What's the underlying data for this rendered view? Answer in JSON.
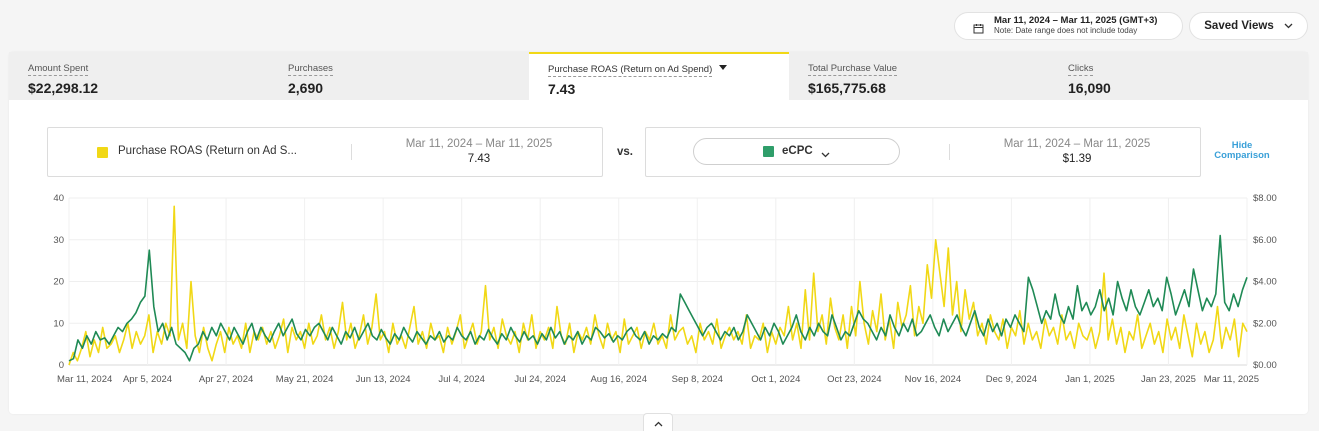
{
  "header": {
    "date_range": "Mar 11, 2024 – Mar 11, 2025 (GMT+3)",
    "date_note": "Note: Date range does not include today",
    "saved_views_label": "Saved Views",
    "icons": {
      "calendar": "calendar-icon",
      "chevron": "chevron-down-icon"
    }
  },
  "metrics": [
    {
      "label": "Amount Spent",
      "value": "$22,298.12"
    },
    {
      "label": "Purchases",
      "value": "2,690"
    },
    {
      "label": "Purchase ROAS (Return on Ad Spend)",
      "value": "7.43",
      "active": true
    },
    {
      "label": "Total Purchase Value",
      "value": "$165,775.68"
    },
    {
      "label": "Clicks",
      "value": "16,090"
    }
  ],
  "comparison": {
    "primary": {
      "name": "Purchase ROAS (Return on Ad S...",
      "range": "Mar 11, 2024 – Mar 11, 2025",
      "value": "7.43",
      "color": "#f1d816"
    },
    "vs_label": "vs.",
    "secondary": {
      "name": "eCPC",
      "range": "Mar 11, 2024 – Mar 11, 2025",
      "value": "$1.39",
      "color": "#2f9e6a"
    },
    "hide_label_line1": "Hide",
    "hide_label_line2": "Comparison"
  },
  "colors": {
    "roas": "#f1d816",
    "ecpc": "#1f8a55",
    "accent": "#3aa0d8"
  },
  "chart_data": {
    "type": "line",
    "x_ticks": [
      "Mar 11, 2024",
      "Apr 5, 2024",
      "Apr 27, 2024",
      "May 21, 2024",
      "Jun 13, 2024",
      "Jul 4, 2024",
      "Jul 24, 2024",
      "Aug 16, 2024",
      "Sep 8, 2024",
      "Oct 1, 2024",
      "Oct 23, 2024",
      "Nov 16, 2024",
      "Dec 9, 2024",
      "Jan 1, 2025",
      "Jan 23, 2025",
      "Mar 11, 2025"
    ],
    "y_left_ticks": [
      "40",
      "30",
      "20",
      "10",
      "0"
    ],
    "y_right_ticks": [
      "$8.00",
      "$6.00",
      "$4.00",
      "$2.00",
      "$0.00"
    ],
    "ylim_left": [
      0,
      40
    ],
    "ylim_right": [
      0,
      8
    ],
    "grid": true,
    "series": [
      {
        "name": "Purchase ROAS (Return on Ad Spend)",
        "axis": "left",
        "values": [
          0,
          3,
          1,
          4,
          8,
          2,
          6,
          3,
          9,
          4,
          5,
          7,
          3,
          6,
          10,
          4,
          8,
          5,
          7,
          12,
          3,
          8,
          5,
          10,
          7,
          38,
          6,
          10,
          4,
          20,
          7,
          3,
          9,
          4,
          1,
          5,
          8,
          3,
          9,
          5,
          7,
          4,
          10,
          3,
          8,
          6,
          9,
          5,
          8,
          4,
          7,
          11,
          3,
          9,
          6,
          8,
          4,
          10,
          5,
          7,
          12,
          6,
          9,
          4,
          8,
          15,
          6,
          10,
          4,
          7,
          12,
          5,
          9,
          17,
          6,
          8,
          3,
          10,
          5,
          7,
          4,
          9,
          14,
          5,
          8,
          4,
          10,
          6,
          7,
          3,
          9,
          5,
          8,
          12,
          4,
          7,
          10,
          5,
          8,
          19,
          6,
          9,
          4,
          11,
          7,
          5,
          8,
          3,
          10,
          6,
          12,
          4,
          8,
          6,
          9,
          4,
          14,
          7,
          5,
          10,
          3,
          8,
          6,
          9,
          5,
          12,
          7,
          4,
          10,
          6,
          8,
          3,
          11,
          5,
          7,
          9,
          4,
          8,
          6,
          10,
          5,
          7,
          4,
          12,
          6,
          8,
          9,
          5,
          7,
          3,
          10,
          6,
          8,
          5,
          11,
          4,
          7,
          9,
          6,
          8,
          5,
          12,
          4,
          7,
          6,
          10,
          3,
          8,
          5,
          9,
          7,
          14,
          6,
          10,
          4,
          18,
          6,
          22,
          8,
          12,
          5,
          16,
          9,
          6,
          12,
          4,
          14,
          7,
          20,
          10,
          5,
          13,
          8,
          17,
          6,
          11,
          4,
          15,
          9,
          12,
          19,
          7,
          14,
          10,
          24,
          16,
          30,
          22,
          14,
          28,
          12,
          20,
          8,
          18,
          11,
          15,
          7,
          10,
          5,
          12,
          8,
          6,
          11,
          4,
          9,
          7,
          13,
          5,
          10,
          6,
          8,
          4,
          11,
          7,
          9,
          5,
          12,
          6,
          8,
          4,
          10,
          7,
          6,
          9,
          4,
          8,
          22,
          6,
          11,
          5,
          9,
          3,
          8,
          6,
          12,
          4,
          7,
          10,
          5,
          8,
          3,
          11,
          6,
          9,
          4,
          12,
          7,
          2,
          10,
          5,
          8,
          3,
          6,
          14,
          4,
          9,
          6,
          11,
          2,
          10,
          8
        ]
      },
      {
        "name": "eCPC",
        "axis": "right",
        "values": [
          0.2,
          0.3,
          1.2,
          0.8,
          1.4,
          1.0,
          1.6,
          1.2,
          1.3,
          1.0,
          1.4,
          1.8,
          1.6,
          2.0,
          2.2,
          2.5,
          3.0,
          3.3,
          5.5,
          2.8,
          1.6,
          2.0,
          1.2,
          1.8,
          1.0,
          0.8,
          0.6,
          0.2,
          0.8,
          1.0,
          1.6,
          1.2,
          1.8,
          1.4,
          2.0,
          1.6,
          1.2,
          1.8,
          1.4,
          1.0,
          1.6,
          2.0,
          1.2,
          1.8,
          1.4,
          1.1,
          1.6,
          2.0,
          1.4,
          1.8,
          2.2,
          1.5,
          1.2,
          1.7,
          1.4,
          1.8,
          2.0,
          1.6,
          1.2,
          1.8,
          1.4,
          1.0,
          1.6,
          1.3,
          1.8,
          1.2,
          1.6,
          2.0,
          1.4,
          1.2,
          1.7,
          1.3,
          1.0,
          1.5,
          1.2,
          1.8,
          1.4,
          1.1,
          1.6,
          1.3,
          1.0,
          1.4,
          1.2,
          1.6,
          1.1,
          1.4,
          1.2,
          1.8,
          1.4,
          1.2,
          1.6,
          1.0,
          1.4,
          1.2,
          1.7,
          1.3,
          1.0,
          1.5,
          1.2,
          1.8,
          1.4,
          1.1,
          1.6,
          1.2,
          1.4,
          1.0,
          1.5,
          1.2,
          1.8,
          1.3,
          1.6,
          1.0,
          1.4,
          1.2,
          1.6,
          1.0,
          1.4,
          1.2,
          1.8,
          1.6,
          1.3,
          1.5,
          1.1,
          1.4,
          1.2,
          1.6,
          1.8,
          1.4,
          1.2,
          1.6,
          1.0,
          1.4,
          1.2,
          1.5,
          1.3,
          1.8,
          1.6,
          3.4,
          3.0,
          2.6,
          2.2,
          1.8,
          1.4,
          1.8,
          2.0,
          1.6,
          1.2,
          1.6,
          1.4,
          1.8,
          1.2,
          1.6,
          2.4,
          2.0,
          1.6,
          1.2,
          1.8,
          1.4,
          2.0,
          1.6,
          1.0,
          1.4,
          1.8,
          2.4,
          1.6,
          1.2,
          1.8,
          1.4,
          2.0,
          1.6,
          1.4,
          2.4,
          1.8,
          1.2,
          1.6,
          1.4,
          2.0,
          2.6,
          2.2,
          2.0,
          1.6,
          1.2,
          1.8,
          1.4,
          2.4,
          1.8,
          1.4,
          2.0,
          1.6,
          2.2,
          1.4,
          1.6,
          2.0,
          2.4,
          1.8,
          1.4,
          2.2,
          1.6,
          2.0,
          2.4,
          1.8,
          1.4,
          2.0,
          2.6,
          1.8,
          1.4,
          2.2,
          1.6,
          2.0,
          1.4,
          2.2,
          1.8,
          2.4,
          2.0,
          1.6,
          4.2,
          3.6,
          2.8,
          2.0,
          2.6,
          2.2,
          3.4,
          2.4,
          2.0,
          2.8,
          2.2,
          3.8,
          2.6,
          3.0,
          2.4,
          2.8,
          3.6,
          2.6,
          3.2,
          2.4,
          4.0,
          3.2,
          2.6,
          3.6,
          2.8,
          2.4,
          3.0,
          3.6,
          2.8,
          3.2,
          2.6,
          4.2,
          3.4,
          2.4,
          3.0,
          3.6,
          2.8,
          4.6,
          3.6,
          2.6,
          3.2,
          2.8,
          3.4,
          6.2,
          3.0,
          2.6,
          3.4,
          2.8,
          3.6,
          4.2
        ]
      }
    ]
  }
}
